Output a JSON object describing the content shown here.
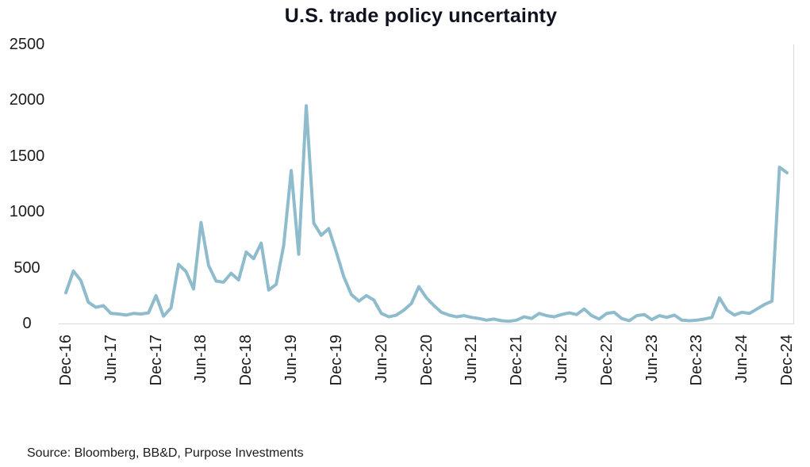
{
  "page": {
    "title": "U.S. trade policy uncertainty",
    "source_note": "Source: Bloomberg, BB&D, Purpose Investments"
  },
  "colors": {
    "line": "#8fbccd",
    "axis_line": "#d9d9d9",
    "text": "#1d1d1d",
    "title": "#0f1320",
    "background": "#ffffff"
  },
  "chart_data": {
    "type": "line",
    "title": "U.S. trade policy uncertainty",
    "xlabel": "",
    "ylabel": "",
    "ylim": [
      0,
      2500
    ],
    "yticks": [
      0,
      500,
      1000,
      1500,
      2000,
      2500
    ],
    "grid": false,
    "legend": "none",
    "line_color": "#8fbccd",
    "source": "Source: Bloomberg, BB&D, Purpose Investments",
    "x_tick_every": 6,
    "x_tick_labels": [
      "Dec-16",
      "Jun-17",
      "Dec-17",
      "Jun-18",
      "Dec-18",
      "Jun-19",
      "Dec-19",
      "Jun-20",
      "Dec-20",
      "Jun-21",
      "Dec-21",
      "Jun-22",
      "Dec-22",
      "Jun-23",
      "Dec-23",
      "Jun-24",
      "Dec-24"
    ],
    "categories": [
      "Dec-16",
      "Jan-17",
      "Feb-17",
      "Mar-17",
      "Apr-17",
      "May-17",
      "Jun-17",
      "Jul-17",
      "Aug-17",
      "Sep-17",
      "Oct-17",
      "Nov-17",
      "Dec-17",
      "Jan-18",
      "Feb-18",
      "Mar-18",
      "Apr-18",
      "May-18",
      "Jun-18",
      "Jul-18",
      "Aug-18",
      "Sep-18",
      "Oct-18",
      "Nov-18",
      "Dec-18",
      "Jan-19",
      "Feb-19",
      "Mar-19",
      "Apr-19",
      "May-19",
      "Jun-19",
      "Jul-19",
      "Aug-19",
      "Sep-19",
      "Oct-19",
      "Nov-19",
      "Dec-19",
      "Jan-20",
      "Feb-20",
      "Mar-20",
      "Apr-20",
      "May-20",
      "Jun-20",
      "Jul-20",
      "Aug-20",
      "Sep-20",
      "Oct-20",
      "Nov-20",
      "Dec-20",
      "Jan-21",
      "Feb-21",
      "Mar-21",
      "Apr-21",
      "May-21",
      "Jun-21",
      "Jul-21",
      "Aug-21",
      "Sep-21",
      "Oct-21",
      "Nov-21",
      "Dec-21",
      "Jan-22",
      "Feb-22",
      "Mar-22",
      "Apr-22",
      "May-22",
      "Jun-22",
      "Jul-22",
      "Aug-22",
      "Sep-22",
      "Oct-22",
      "Nov-22",
      "Dec-22",
      "Jan-23",
      "Feb-23",
      "Mar-23",
      "Apr-23",
      "May-23",
      "Jun-23",
      "Jul-23",
      "Aug-23",
      "Sep-23",
      "Oct-23",
      "Nov-23",
      "Dec-23",
      "Jan-24",
      "Feb-24",
      "Mar-24",
      "Apr-24",
      "May-24",
      "Jun-24",
      "Jul-24",
      "Aug-24",
      "Sep-24",
      "Oct-24",
      "Nov-24",
      "Dec-24"
    ],
    "values": [
      275,
      470,
      385,
      190,
      145,
      160,
      90,
      85,
      75,
      90,
      85,
      95,
      250,
      65,
      140,
      530,
      465,
      310,
      905,
      520,
      380,
      370,
      450,
      390,
      640,
      580,
      720,
      300,
      350,
      700,
      1370,
      620,
      1950,
      900,
      790,
      850,
      640,
      420,
      260,
      200,
      250,
      210,
      90,
      60,
      75,
      120,
      180,
      330,
      230,
      160,
      100,
      75,
      60,
      70,
      55,
      45,
      30,
      40,
      25,
      20,
      30,
      60,
      45,
      90,
      70,
      60,
      80,
      95,
      80,
      130,
      70,
      40,
      90,
      100,
      45,
      25,
      70,
      80,
      35,
      70,
      55,
      75,
      30,
      25,
      30,
      40,
      55,
      230,
      120,
      75,
      100,
      90,
      130,
      170,
      200,
      1400,
      1350
    ]
  }
}
